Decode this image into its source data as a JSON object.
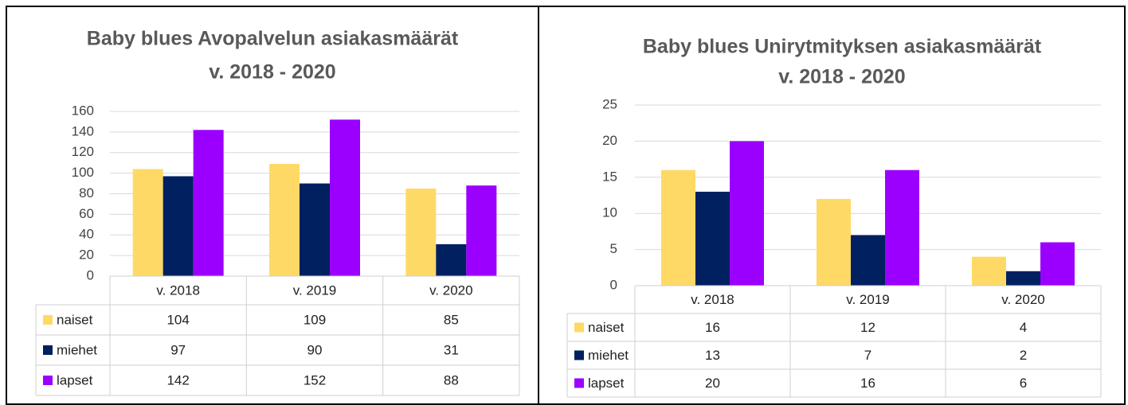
{
  "chart_data": [
    {
      "type": "bar",
      "title": [
        "Baby blues Avopalvelun asiakasmäärät",
        "v. 2018 - 2020"
      ],
      "categories": [
        "v. 2018",
        "v. 2019",
        "v. 2020"
      ],
      "series": [
        {
          "name": "naiset",
          "color": "#ffd966",
          "values": [
            104,
            109,
            85
          ]
        },
        {
          "name": "miehet",
          "color": "#002060",
          "values": [
            97,
            90,
            31
          ]
        },
        {
          "name": "lapset",
          "color": "#9b00ff",
          "values": [
            142,
            152,
            88
          ]
        }
      ],
      "ylim": [
        0,
        160
      ],
      "yticks": [
        0,
        20,
        40,
        60,
        80,
        100,
        120,
        140,
        160
      ],
      "grid": true,
      "data_table": true
    },
    {
      "type": "bar",
      "title": [
        "Baby blues Unirytmityksen asiakasmäärät",
        "v. 2018 - 2020"
      ],
      "categories": [
        "v. 2018",
        "v. 2019",
        "v. 2020"
      ],
      "series": [
        {
          "name": "naiset",
          "color": "#ffd966",
          "values": [
            16,
            12,
            4
          ]
        },
        {
          "name": "miehet",
          "color": "#002060",
          "values": [
            13,
            7,
            2
          ]
        },
        {
          "name": "lapset",
          "color": "#9b00ff",
          "values": [
            20,
            16,
            6
          ]
        }
      ],
      "ylim": [
        0,
        25
      ],
      "yticks": [
        0,
        5,
        10,
        15,
        20,
        25
      ],
      "grid": true,
      "data_table": true
    }
  ]
}
